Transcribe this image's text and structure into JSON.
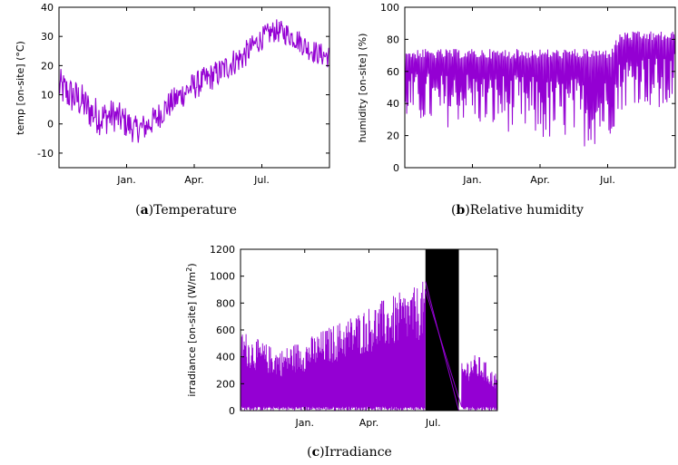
{
  "series_color": "#9400d3",
  "chart_data": [
    {
      "id": "a",
      "type": "line",
      "ylabel_text": "temp [on-site] (°C)",
      "ylim": [
        -15,
        40
      ],
      "yticks": [
        -10,
        0,
        10,
        20,
        30,
        40
      ],
      "xticks": [
        {
          "label": "Jan.",
          "x": 0.25
        },
        {
          "label": "Apr.",
          "x": 0.5
        },
        {
          "label": "Jul.",
          "x": 0.75
        }
      ],
      "caption_letter": "a",
      "caption_text": "Temperature",
      "grid": false,
      "series": [
        {
          "x": [
            0.0,
            0.04,
            0.08,
            0.12,
            0.16,
            0.2,
            0.24,
            0.28,
            0.32,
            0.36,
            0.4,
            0.44,
            0.48,
            0.52,
            0.56,
            0.6,
            0.64,
            0.68,
            0.72,
            0.76,
            0.8,
            0.84,
            0.88,
            0.92,
            0.96,
            1.0
          ],
          "values": [
            13,
            10,
            8,
            4,
            2,
            3,
            1,
            -2,
            -1,
            2,
            6,
            9,
            12,
            14,
            16,
            18,
            21,
            23,
            27,
            30,
            32,
            31,
            29,
            26,
            24,
            23
          ],
          "spread": [
            8,
            8,
            8,
            8,
            8,
            7,
            7,
            6,
            6,
            6,
            6,
            6,
            6,
            6,
            6,
            6,
            6,
            6,
            5,
            5,
            5,
            5,
            5,
            5,
            5,
            5
          ]
        }
      ]
    },
    {
      "id": "b",
      "type": "line",
      "ylabel_text": "humidity [on-site] (%)",
      "ylim": [
        0,
        100
      ],
      "yticks": [
        0,
        20,
        40,
        60,
        80,
        100
      ],
      "xticks": [
        {
          "label": "Jan.",
          "x": 0.25
        },
        {
          "label": "Apr.",
          "x": 0.5
        },
        {
          "label": "Jul.",
          "x": 0.75
        }
      ],
      "caption_letter": "b",
      "caption_text": "Relative humidity",
      "grid": false,
      "series": [
        {
          "x": [
            0.0,
            0.04,
            0.08,
            0.12,
            0.16,
            0.2,
            0.24,
            0.28,
            0.32,
            0.36,
            0.4,
            0.44,
            0.48,
            0.52,
            0.56,
            0.6,
            0.64,
            0.68,
            0.72,
            0.76,
            0.8,
            0.84,
            0.88,
            0.92,
            0.96,
            1.0
          ],
          "upper": [
            74,
            74,
            74,
            74,
            74,
            74,
            74,
            74,
            74,
            74,
            74,
            74,
            74,
            74,
            74,
            74,
            74,
            74,
            74,
            74,
            85,
            85,
            85,
            85,
            85,
            85
          ],
          "lower": [
            30,
            25,
            28,
            22,
            25,
            28,
            30,
            25,
            22,
            25,
            20,
            20,
            18,
            15,
            15,
            18,
            15,
            12,
            15,
            20,
            35,
            40,
            40,
            35,
            30,
            45
          ]
        }
      ]
    },
    {
      "id": "c",
      "type": "line",
      "ylabel_text": "irradiance [on-site] (W/m",
      "ylabel_sup": "2",
      "ylabel_end": ")",
      "ylim": [
        0,
        1200
      ],
      "yticks": [
        0,
        200,
        400,
        600,
        800,
        1000,
        1200
      ],
      "xticks": [
        {
          "label": "Jan.",
          "x": 0.25
        },
        {
          "label": "Apr.",
          "x": 0.5
        },
        {
          "label": "Jul.",
          "x": 0.75
        }
      ],
      "caption_letter": "c",
      "caption_text": "Irradiance",
      "grid": false,
      "missing_range": [
        0.72,
        0.85
      ],
      "series": [
        {
          "x": [
            0.0,
            0.04,
            0.08,
            0.12,
            0.16,
            0.2,
            0.24,
            0.28,
            0.32,
            0.36,
            0.4,
            0.44,
            0.48,
            0.52,
            0.56,
            0.6,
            0.64,
            0.68,
            0.72,
            0.86,
            0.9,
            0.94,
            0.98,
            1.0
          ],
          "peak": [
            620,
            560,
            520,
            480,
            460,
            500,
            520,
            560,
            600,
            640,
            680,
            720,
            760,
            800,
            830,
            860,
            900,
            920,
            980,
            350,
            420,
            400,
            300,
            280
          ]
        }
      ]
    }
  ]
}
